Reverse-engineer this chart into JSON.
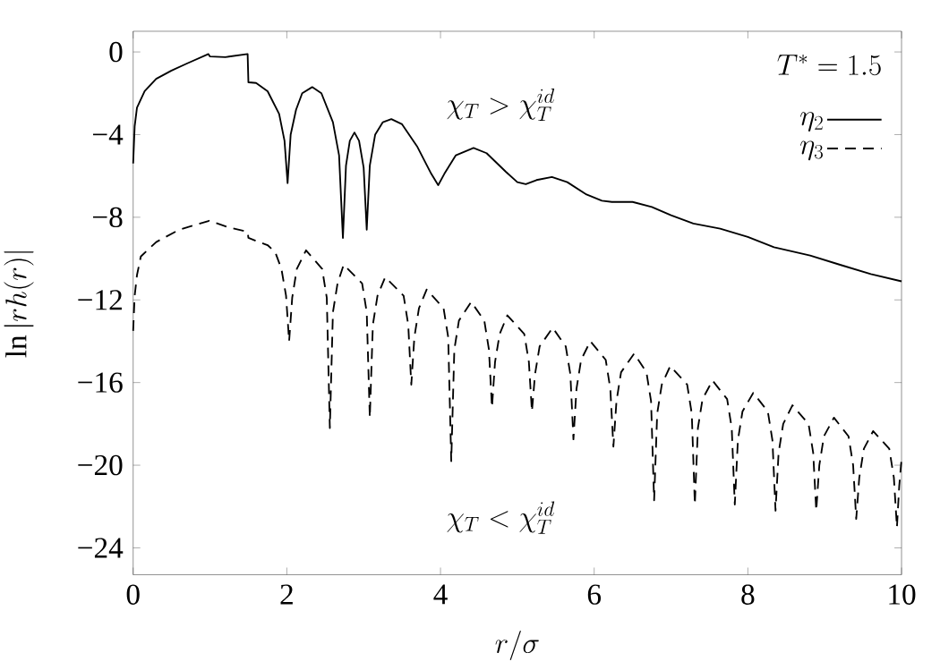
{
  "chart_data": {
    "type": "line",
    "xlabel": "r/\\sigma",
    "ylabel": "\\ln|rh(r)|",
    "xlim": [
      0,
      10
    ],
    "ylim": [
      -25.3,
      1
    ],
    "xticks": [
      0,
      2,
      4,
      6,
      8,
      10
    ],
    "yticks": [
      {
        "value": 0,
        "label": "0"
      },
      {
        "value": -4,
        "label": "−4"
      },
      {
        "value": -8,
        "label": "−8"
      },
      {
        "value": -12,
        "label": "−12"
      },
      {
        "value": -16,
        "label": "−16"
      },
      {
        "value": -20,
        "label": "−20"
      },
      {
        "value": -24,
        "label": "−24"
      }
    ],
    "legend": "top right",
    "legend_title": "T^* = 1.5",
    "annotations": [
      "\\chi_T > \\chi_T^{id}",
      "\\chi_T < \\chi_T^{id}"
    ],
    "series": [
      {
        "name": "\\eta_2",
        "color": "#000000",
        "line_style": "solid",
        "x": [
          0,
          0.02,
          0.05,
          0.15,
          0.3,
          0.5,
          0.7,
          0.98,
          1.0,
          1.2,
          1.49,
          1.5,
          1.6,
          1.75,
          1.9,
          1.97,
          2.01,
          2.05,
          2.12,
          2.2,
          2.33,
          2.45,
          2.6,
          2.68,
          2.73,
          2.77,
          2.82,
          2.88,
          2.94,
          3.0,
          3.04,
          3.08,
          3.15,
          3.25,
          3.36,
          3.5,
          3.7,
          3.88,
          3.97,
          4.05,
          4.2,
          4.43,
          4.6,
          4.85,
          5.0,
          5.11,
          5.25,
          5.45,
          5.65,
          5.9,
          6.1,
          6.23,
          6.5,
          6.75,
          7.0,
          7.29,
          7.64,
          8.0,
          8.34,
          8.81,
          9.2,
          9.6,
          10
        ],
        "values": [
          -5.4,
          -3.6,
          -2.7,
          -1.9,
          -1.3,
          -0.9,
          -0.56,
          -0.1,
          -0.22,
          -0.25,
          -0.1,
          -1.47,
          -1.5,
          -1.9,
          -3.0,
          -4.3,
          -6.35,
          -4.0,
          -2.8,
          -2.0,
          -1.7,
          -2.0,
          -3.4,
          -5.0,
          -9.0,
          -5.5,
          -4.3,
          -3.9,
          -4.3,
          -5.6,
          -8.6,
          -5.5,
          -4.0,
          -3.4,
          -3.25,
          -3.5,
          -4.6,
          -5.9,
          -6.45,
          -5.9,
          -5.0,
          -4.65,
          -4.9,
          -5.8,
          -6.3,
          -6.4,
          -6.2,
          -6.05,
          -6.3,
          -6.9,
          -7.2,
          -7.26,
          -7.26,
          -7.5,
          -7.9,
          -8.3,
          -8.55,
          -8.95,
          -9.45,
          -9.85,
          -10.3,
          -10.75,
          -11.1
        ]
      },
      {
        "name": "\\eta_3",
        "color": "#000000",
        "line_style": "dashed",
        "x": [
          0,
          0.02,
          0.05,
          0.1,
          0.3,
          0.6,
          0.99,
          1.25,
          1.49,
          1.5,
          1.75,
          1.85,
          1.93,
          1.99,
          2.03,
          2.07,
          2.13,
          2.25,
          2.46,
          2.52,
          2.56,
          2.6,
          2.66,
          2.74,
          2.98,
          3.04,
          3.08,
          3.12,
          3.18,
          3.28,
          3.52,
          3.58,
          3.62,
          3.66,
          3.72,
          3.82,
          4.04,
          4.1,
          4.14,
          4.18,
          4.24,
          4.4,
          4.57,
          4.63,
          4.67,
          4.71,
          4.77,
          4.87,
          5.09,
          5.15,
          5.19,
          5.23,
          5.29,
          5.46,
          5.63,
          5.69,
          5.73,
          5.77,
          5.83,
          5.95,
          6.15,
          6.21,
          6.25,
          6.29,
          6.35,
          6.52,
          6.68,
          6.74,
          6.78,
          6.82,
          6.88,
          6.99,
          7.21,
          7.27,
          7.31,
          7.35,
          7.41,
          7.54,
          7.73,
          7.79,
          7.83,
          7.87,
          7.93,
          8.07,
          8.26,
          8.32,
          8.36,
          8.4,
          8.46,
          8.58,
          8.79,
          8.85,
          8.89,
          8.93,
          8.99,
          9.12,
          9.31,
          9.37,
          9.41,
          9.45,
          9.51,
          9.63,
          9.84,
          9.9,
          9.94,
          9.97,
          10
        ],
        "values": [
          -13.5,
          -11.8,
          -10.8,
          -9.9,
          -9.2,
          -8.6,
          -8.17,
          -8.5,
          -8.7,
          -9.0,
          -9.35,
          -9.7,
          -10.5,
          -11.8,
          -14.0,
          -11.9,
          -10.5,
          -9.6,
          -10.5,
          -11.9,
          -18.2,
          -12.6,
          -11.2,
          -10.3,
          -11.2,
          -12.6,
          -17.7,
          -13.2,
          -11.8,
          -10.9,
          -11.8,
          -13.2,
          -16.1,
          -13.8,
          -12.4,
          -11.5,
          -12.4,
          -13.8,
          -19.8,
          -14.4,
          -13.0,
          -12.1,
          -13.0,
          -14.4,
          -17.2,
          -15.0,
          -13.65,
          -12.75,
          -13.65,
          -15.0,
          -17.4,
          -15.6,
          -14.25,
          -13.35,
          -14.25,
          -15.6,
          -18.75,
          -16.3,
          -14.9,
          -14.0,
          -14.9,
          -16.3,
          -19.1,
          -16.9,
          -15.5,
          -14.6,
          -15.5,
          -16.9,
          -21.7,
          -17.5,
          -16.1,
          -15.2,
          -16.1,
          -17.5,
          -21.9,
          -18.2,
          -16.8,
          -15.9,
          -16.8,
          -18.2,
          -21.9,
          -18.8,
          -17.4,
          -16.5,
          -17.4,
          -18.8,
          -22.2,
          -19.4,
          -18.0,
          -17.1,
          -18.0,
          -19.4,
          -22.2,
          -20.0,
          -18.6,
          -17.7,
          -18.6,
          -20.0,
          -22.6,
          -20.6,
          -19.2,
          -18.35,
          -19.2,
          -20.6,
          -23.0,
          -21.0,
          -19.7
        ]
      }
    ]
  }
}
